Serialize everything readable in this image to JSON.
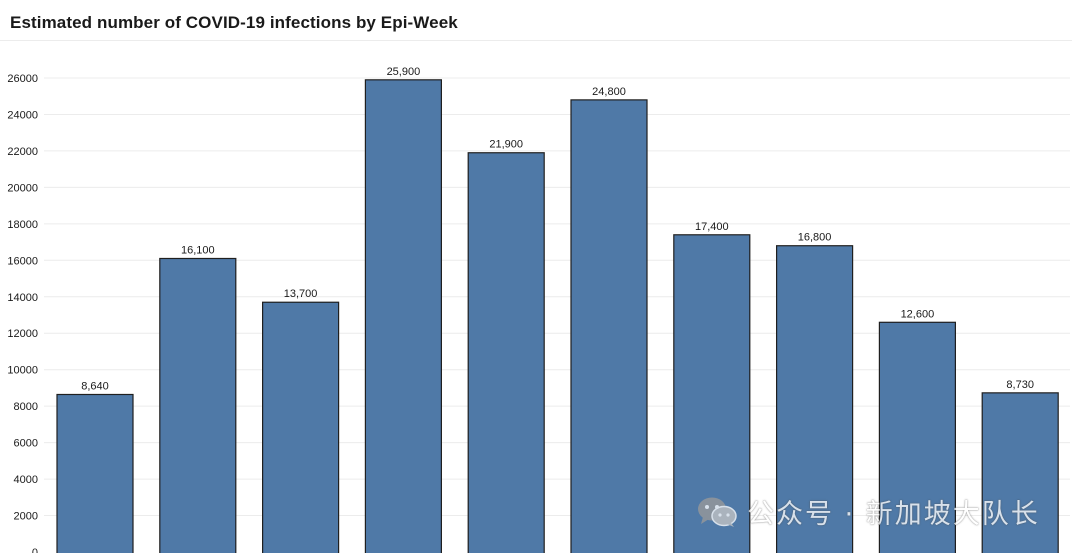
{
  "chart_data": {
    "type": "bar",
    "title": "Estimated number of COVID-19 infections by Epi-Week",
    "xlabel": "",
    "ylabel": "",
    "ylim": [
      0,
      26000
    ],
    "yticks": [
      0,
      2000,
      4000,
      6000,
      8000,
      10000,
      12000,
      14000,
      16000,
      18000,
      20000,
      22000,
      24000,
      26000
    ],
    "values": [
      8640,
      16100,
      13700,
      25900,
      21900,
      24800,
      17400,
      16800,
      12600,
      8730
    ],
    "data_labels": [
      "8,640",
      "16,100",
      "13,700",
      "25,900",
      "21,900",
      "24,800",
      "17,400",
      "16,800",
      "12,600",
      "8,730"
    ],
    "grid": true,
    "legend": "none"
  },
  "colors": {
    "bar_fill": "#4f79a7",
    "bar_stroke": "#1f1f1f",
    "gridline": "#ececec",
    "text": "#1a1a1a"
  },
  "watermark": {
    "icon": "wechat-icon",
    "text": "公众号 · 新加坡大队长"
  }
}
